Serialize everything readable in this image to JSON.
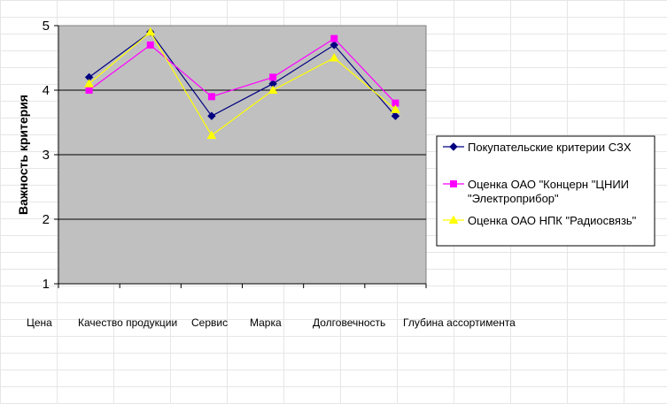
{
  "chart_data": {
    "type": "line",
    "ylabel": "Важность критерия",
    "xlabel": "",
    "ylim": [
      1,
      5
    ],
    "yticks": [
      1,
      2,
      3,
      4,
      5
    ],
    "grid": true,
    "legend_position": "right",
    "categories": [
      "Цена",
      "Качество продукции",
      "Сервис",
      "Марка",
      "Долговечность",
      "Глубина ассортимента"
    ],
    "series": [
      {
        "name": "Покупательские критерии СЗХ",
        "values": [
          4.2,
          4.9,
          3.6,
          4.1,
          4.7,
          3.6
        ],
        "color": "#000080",
        "marker": "diamond"
      },
      {
        "name": "Оценка ОАО \"Концерн \"ЦНИИ \"Электроприбор\"",
        "legend_lines": [
          "Оценка ОАО \"Концерн \"ЦНИИ",
          "\"Электроприбор\""
        ],
        "values": [
          4.0,
          4.7,
          3.9,
          4.2,
          4.8,
          3.8
        ],
        "color": "#ff00ff",
        "marker": "square"
      },
      {
        "name": "Оценка ОАО НПК \"Радиосвязь\"",
        "values": [
          4.1,
          4.9,
          3.3,
          4.0,
          4.5,
          3.7
        ],
        "color": "#ffff00",
        "marker": "triangle"
      }
    ]
  }
}
